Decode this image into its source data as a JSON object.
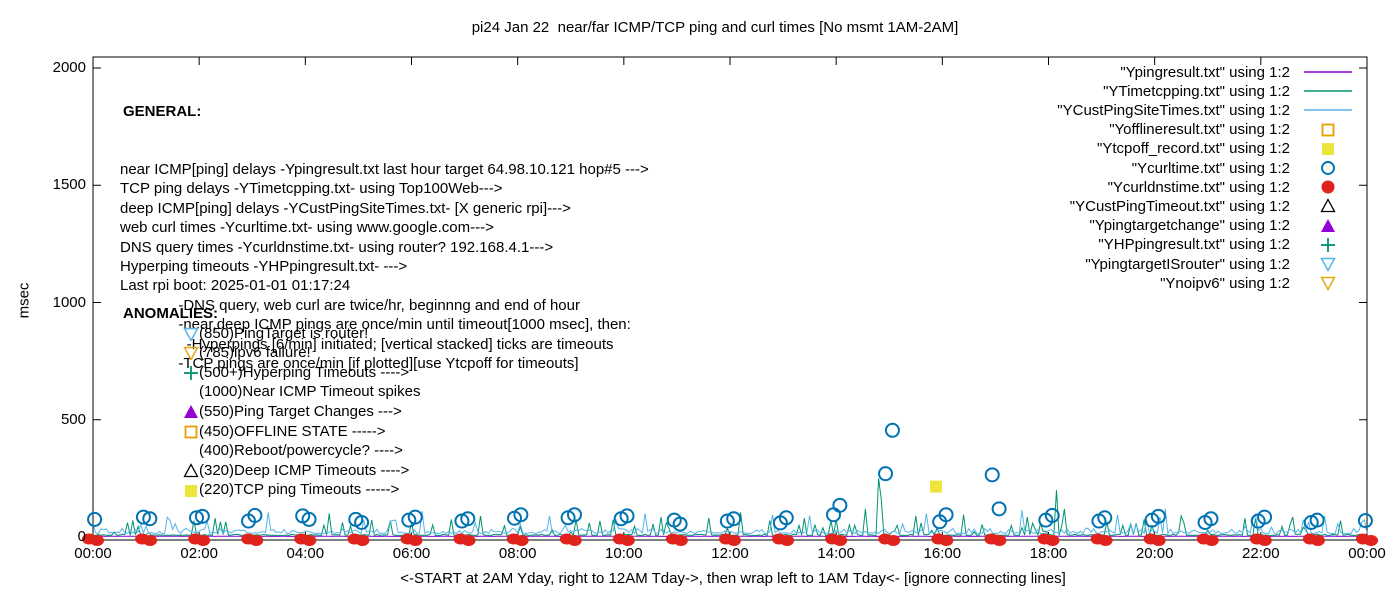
{
  "title": "pi24 Jan 22  near/far ICMP/TCP ping and curl times [No msmt 1AM-2AM]",
  "y_axis": {
    "label": "msec",
    "ticks": [
      0,
      500,
      1000,
      1500,
      2000
    ]
  },
  "x_axis": {
    "tick_labels": [
      "00:00",
      "02:00",
      "04:00",
      "06:00",
      "08:00",
      "10:00",
      "12:00",
      "14:00",
      "16:00",
      "18:00",
      "20:00",
      "22:00",
      "00:00"
    ],
    "footer": "<-START at 2AM Yday, right to 12AM Tday->, then wrap left to 1AM Tday<- [ignore connecting lines]"
  },
  "general": {
    "header": "GENERAL:",
    "lines": [
      "near ICMP[ping] delays -Ypingresult.txt last hour target 64.98.10.121 hop#5 --->",
      "TCP ping delays -YTimetcpping.txt- using Top100Web--->",
      "deep ICMP[ping] delays -YCustPingSiteTimes.txt- [X generic rpi]--->",
      "web curl times -Ycurltime.txt- using www.google.com--->",
      "DNS query times -Ycurldnstime.txt- using router? 192.168.4.1--->",
      "Hyperping timeouts -YHPpingresult.txt- --->",
      "Last rpi boot: 2025-01-01 01:17:24",
      "              -DNS query, web curl are twice/hr, beginnng and end of hour",
      "              -near,deep ICMP pings are once/min until timeout[1000 msec], then:",
      "                -Hyperpings [6/min] initiated; [vertical stacked] ticks are timeouts",
      "              -TCP pings are once/min [if plotted][use Ytcpoff for timeouts]"
    ]
  },
  "anomalies": {
    "header": "ANOMALIES:",
    "items": [
      {
        "marker": "triangle-down-open",
        "color": "#56b4e9",
        "text": "(850)PingTarget is router!"
      },
      {
        "marker": "triangle-down-open",
        "color": "#e6a817",
        "text": "(785)ipv6 failure!"
      },
      {
        "marker": "plus",
        "color": "#009272",
        "text": "(500+)Hyperping Timeouts ---->"
      },
      {
        "marker": "none",
        "color": "",
        "text": "(1000)Near ICMP Timeout spikes"
      },
      {
        "marker": "triangle-up-filled",
        "color": "#9400d3",
        "text": "(550)Ping Target Changes --->"
      },
      {
        "marker": "square-open",
        "color": "#e69f00",
        "text": "(450)OFFLINE STATE ----->"
      },
      {
        "marker": "none",
        "color": "",
        "text": "(400)Reboot/powercycle? ---->"
      },
      {
        "marker": "triangle-up-open",
        "color": "#000000",
        "text": "(320)Deep ICMP Timeouts ---->"
      },
      {
        "marker": "square-filled",
        "color": "#ede53b",
        "text": "(220)TCP ping Timeouts ----->"
      }
    ]
  },
  "legend": [
    {
      "label": "\"Ypingresult.txt\" using 1:2",
      "marker": "line",
      "color": "#9400d3"
    },
    {
      "label": "\"YTimetcpping.txt\" using 1:2",
      "marker": "line",
      "color": "#009272"
    },
    {
      "label": "\"YCustPingSiteTimes.txt\" using 1:2",
      "marker": "line",
      "color": "#56b4e9"
    },
    {
      "label": "\"Yofflineresult.txt\" using 1:2",
      "marker": "square-open",
      "color": "#e69f00"
    },
    {
      "label": "\"Ytcpoff_record.txt\" using 1:2",
      "marker": "square-filled",
      "color": "#ede53b"
    },
    {
      "label": "\"Ycurltime.txt\" using 1:2",
      "marker": "circle-open",
      "color": "#0072b2"
    },
    {
      "label": "\"Ycurldnstime.txt\" using 1:2",
      "marker": "circle-filled",
      "color": "#e0231d"
    },
    {
      "label": "\"YCustPingTimeout.txt\" using 1:2",
      "marker": "triangle-up-open",
      "color": "#000000"
    },
    {
      "label": "\"Ypingtargetchange\" using 1:2",
      "marker": "triangle-up-filled",
      "color": "#9400d3"
    },
    {
      "label": "\"YHPpingresult.txt\" using 1:2",
      "marker": "plus",
      "color": "#009272"
    },
    {
      "label": "\"YpingtargetISrouter\" using 1:2",
      "marker": "triangle-down-open",
      "color": "#56b4e9"
    },
    {
      "label": "\"Ynoipv6\" using 1:2",
      "marker": "triangle-down-open",
      "color": "#e6a817"
    }
  ],
  "chart_data": {
    "type": "line",
    "title": "pi24 Jan 22  near/far ICMP/TCP ping and curl times [No msmt 1AM-2AM]",
    "ylabel": "msec",
    "ylim": [
      0,
      2000
    ],
    "xlim_hours": [
      0,
      24
    ],
    "grid": false,
    "legend_position": "top-right",
    "noise_seed": 20250122,
    "series": [
      {
        "name": "Ypingresult.txt",
        "color": "#9400d3",
        "style": "line",
        "baseline_msec": 3,
        "noise": 1,
        "spikes": []
      },
      {
        "name": "YTimetcpping.txt",
        "color": "#009272",
        "style": "noisy-line",
        "baseline_msec": 7,
        "noise": 5,
        "spike_chance": 0.12,
        "spike_max": 60,
        "spikes": [
          [
            2.3,
            80
          ],
          [
            4.45,
            100
          ],
          [
            5.6,
            70
          ],
          [
            7.3,
            90
          ],
          [
            9.1,
            75
          ],
          [
            10.7,
            85
          ],
          [
            12.2,
            105
          ],
          [
            13.4,
            80
          ],
          [
            14.55,
            120
          ],
          [
            14.8,
            250
          ],
          [
            14.87,
            160
          ],
          [
            15.5,
            90
          ],
          [
            16.4,
            95
          ],
          [
            17.6,
            85
          ],
          [
            18.15,
            200
          ],
          [
            18.32,
            120
          ],
          [
            19.8,
            75
          ],
          [
            20.5,
            90
          ],
          [
            21.7,
            80
          ],
          [
            22.6,
            85
          ],
          [
            23.5,
            70
          ]
        ]
      },
      {
        "name": "YCustPingSiteTimes.txt",
        "color": "#56b4e9",
        "style": "noisy-line",
        "baseline_msec": 15,
        "noise": 22,
        "spike_chance": 0.06,
        "spike_max": 50,
        "spikes": [
          [
            1.4,
            85
          ],
          [
            3.3,
            105
          ],
          [
            6.2,
            110
          ],
          [
            8.6,
            90
          ],
          [
            10.4,
            100
          ],
          [
            12.8,
            95
          ],
          [
            13.5,
            92
          ],
          [
            15.7,
            100
          ],
          [
            17.5,
            115
          ],
          [
            19.3,
            95
          ],
          [
            20.2,
            120
          ],
          [
            21.9,
            95
          ],
          [
            23.2,
            90
          ]
        ]
      },
      {
        "name": "Ycurltime.txt",
        "color": "#0072b2",
        "style": "points-circle-open",
        "points": [
          [
            0.03,
            75
          ],
          [
            0.95,
            85
          ],
          [
            1.07,
            78
          ],
          [
            1.95,
            82
          ],
          [
            2.06,
            88
          ],
          [
            2.93,
            68
          ],
          [
            3.05,
            92
          ],
          [
            3.95,
            90
          ],
          [
            4.07,
            75
          ],
          [
            4.95,
            75
          ],
          [
            5.06,
            62
          ],
          [
            5.95,
            72
          ],
          [
            6.07,
            85
          ],
          [
            6.95,
            68
          ],
          [
            7.06,
            78
          ],
          [
            7.94,
            80
          ],
          [
            8.06,
            95
          ],
          [
            8.95,
            82
          ],
          [
            9.07,
            95
          ],
          [
            9.95,
            78
          ],
          [
            10.06,
            90
          ],
          [
            10.95,
            72
          ],
          [
            11.06,
            55
          ],
          [
            11.95,
            68
          ],
          [
            12.07,
            78
          ],
          [
            12.95,
            60
          ],
          [
            13.06,
            82
          ],
          [
            13.95,
            95
          ],
          [
            14.07,
            135
          ],
          [
            14.93,
            270
          ],
          [
            15.06,
            455
          ],
          [
            15.95,
            65
          ],
          [
            16.07,
            95
          ],
          [
            16.94,
            265
          ],
          [
            17.07,
            120
          ],
          [
            17.95,
            72
          ],
          [
            18.07,
            92
          ],
          [
            18.95,
            68
          ],
          [
            19.06,
            82
          ],
          [
            19.95,
            72
          ],
          [
            20.07,
            88
          ],
          [
            20.95,
            62
          ],
          [
            21.06,
            78
          ],
          [
            21.95,
            68
          ],
          [
            22.07,
            85
          ],
          [
            22.95,
            62
          ],
          [
            23.06,
            72
          ],
          [
            23.97,
            70
          ]
        ]
      },
      {
        "name": "Ycurldnstime.txt",
        "color": "#e0231d",
        "style": "points-circle-filled",
        "points": [
          [
            0,
            0
          ],
          [
            1,
            0
          ],
          [
            2,
            0
          ],
          [
            3,
            0
          ],
          [
            4,
            0
          ],
          [
            5,
            0
          ],
          [
            6,
            0
          ],
          [
            7,
            0
          ],
          [
            8,
            0
          ],
          [
            9,
            0
          ],
          [
            10,
            0
          ],
          [
            11,
            0
          ],
          [
            12,
            0
          ],
          [
            13,
            0
          ],
          [
            14,
            0
          ],
          [
            15,
            0
          ],
          [
            16,
            0
          ],
          [
            17,
            0
          ],
          [
            18,
            0
          ],
          [
            19,
            0
          ],
          [
            20,
            0
          ],
          [
            21,
            0
          ],
          [
            22,
            0
          ],
          [
            23,
            0
          ],
          [
            24,
            0
          ]
        ]
      },
      {
        "name": "Ytcpoff_record.txt",
        "color": "#ede53b",
        "style": "points-square-filled",
        "points": [
          [
            15.88,
            215
          ]
        ]
      }
    ]
  }
}
